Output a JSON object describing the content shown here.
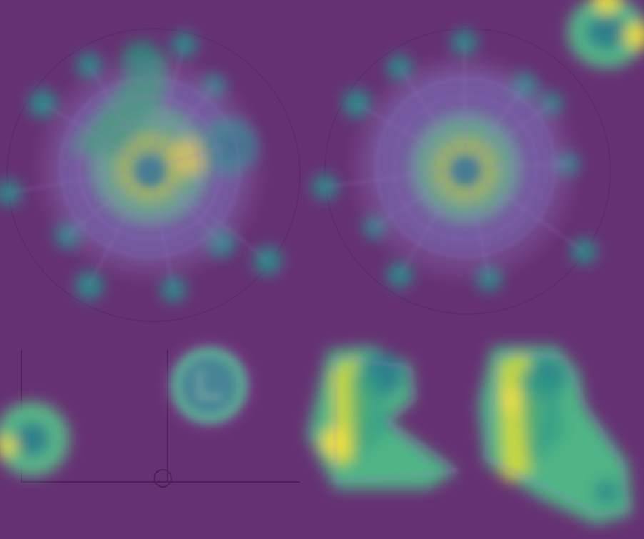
{
  "image": {
    "description_type": "heatmap-overlay",
    "colors": {
      "background": "#663173",
      "heat_low": "#2f8a8f",
      "heat_mid": "#35b37b",
      "heat_high": "#c9d83a",
      "heat_peak": "#f2e44a",
      "outline": "#8c63a3",
      "dark_ring": "#5a2a68"
    }
  }
}
